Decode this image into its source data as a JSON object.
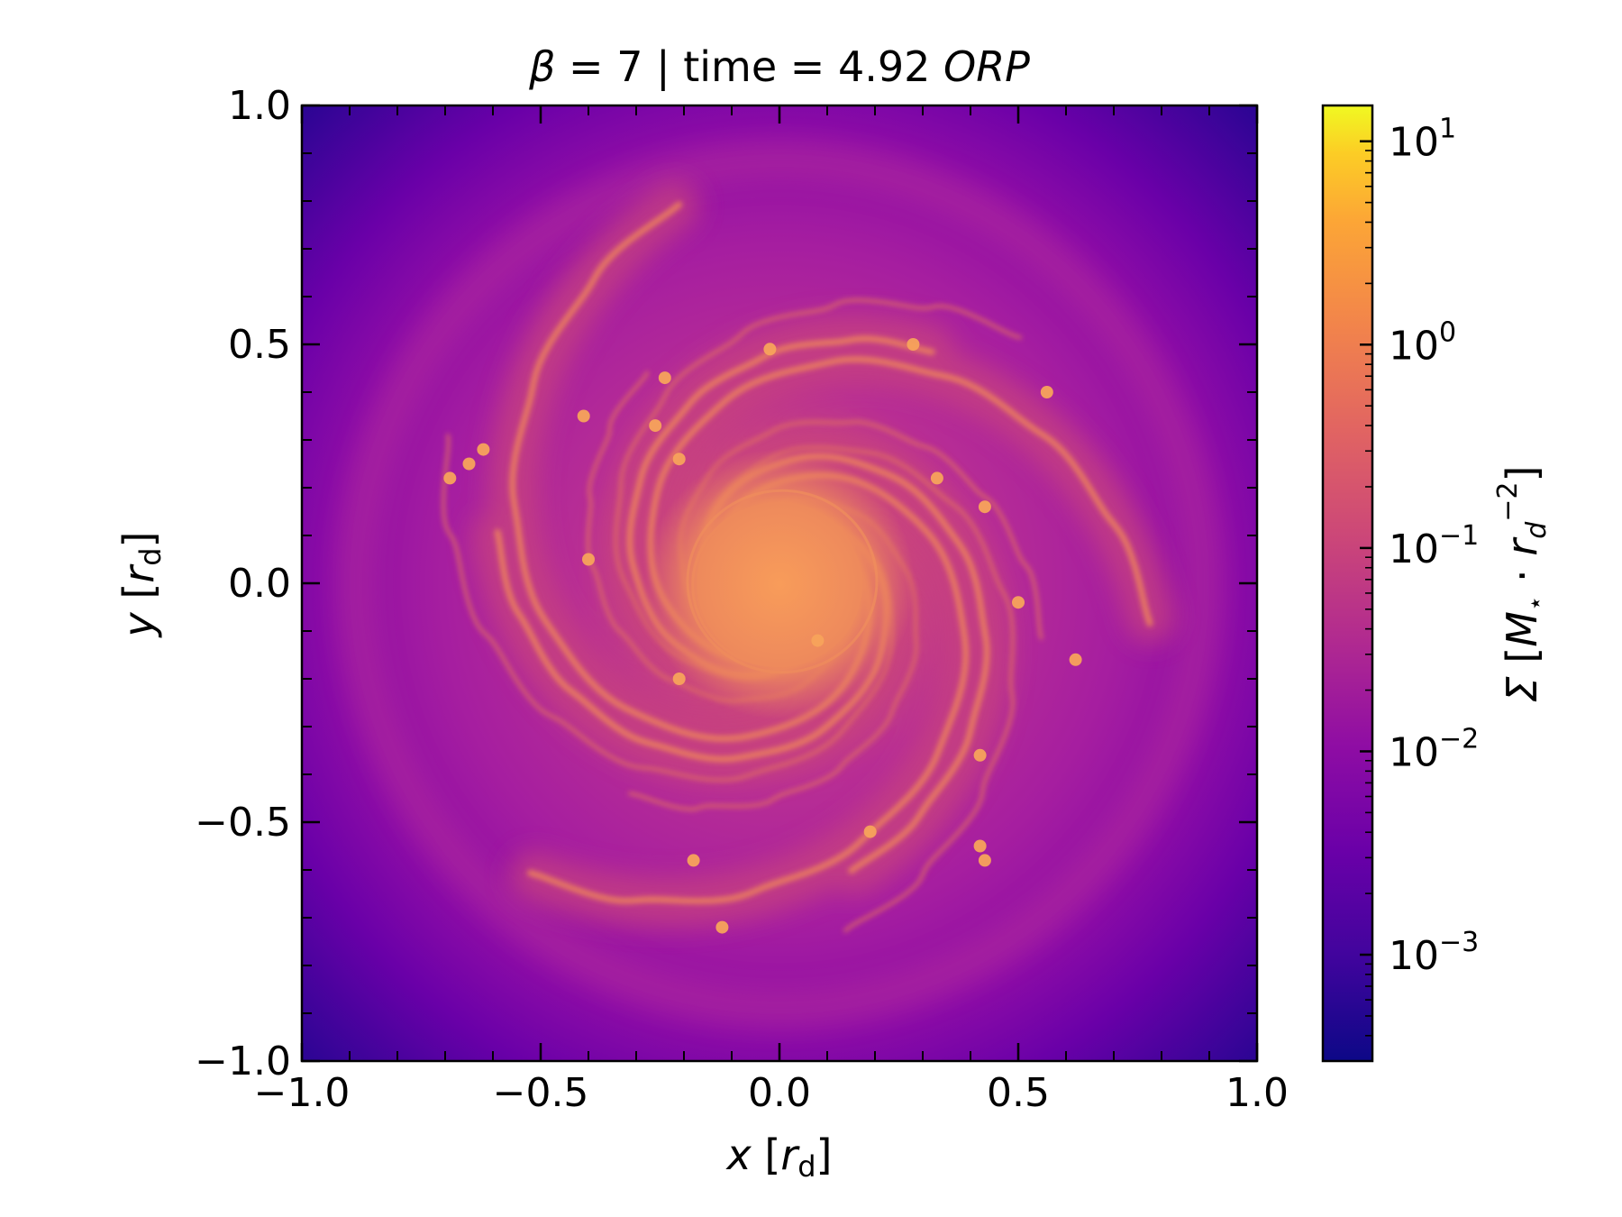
{
  "chart_data": {
    "type": "heatmap",
    "title": {
      "beta_symbol": "β",
      "beta_text": " = 7 | time = 4.92 ",
      "unit": "ORP"
    },
    "xlabel": {
      "var": "x",
      "open": " [",
      "sym": "r",
      "sub": "d",
      "close": "]"
    },
    "ylabel": {
      "var": "y",
      "open": " [",
      "sym": "r",
      "sub": "d",
      "close": "]"
    },
    "xlim": [
      -1.0,
      1.0
    ],
    "ylim": [
      -1.0,
      1.0
    ],
    "xticks": [
      -1.0,
      -0.5,
      0.0,
      0.5,
      1.0
    ],
    "yticks": [
      -1.0,
      -0.5,
      0.0,
      0.5,
      1.0
    ],
    "xtick_labels": [
      "−1.0",
      "−0.5",
      "0.0",
      "0.5",
      "1.0"
    ],
    "ytick_labels": [
      "−1.0",
      "−0.5",
      "0.0",
      "0.5",
      "1.0"
    ],
    "colorbar": {
      "scale": "log",
      "colormap": "plasma",
      "range": [
        0.0003,
        15
      ],
      "ticks": [
        0.001,
        0.01,
        0.1,
        1,
        10
      ],
      "tick_bases": [
        "10",
        "10",
        "10",
        "10",
        "10"
      ],
      "tick_exponents": [
        "−3",
        "−2",
        "−1",
        "0",
        "1"
      ],
      "label": "Σ [M⋆ · r_d^−2]"
    },
    "grid": false,
    "field": {
      "description_values": "surface density, peak at center, spiral arms",
      "center_value": 1.2,
      "arm_value": 0.6,
      "interarm_value": 0.006,
      "corner_value": 0.0006
    }
  }
}
